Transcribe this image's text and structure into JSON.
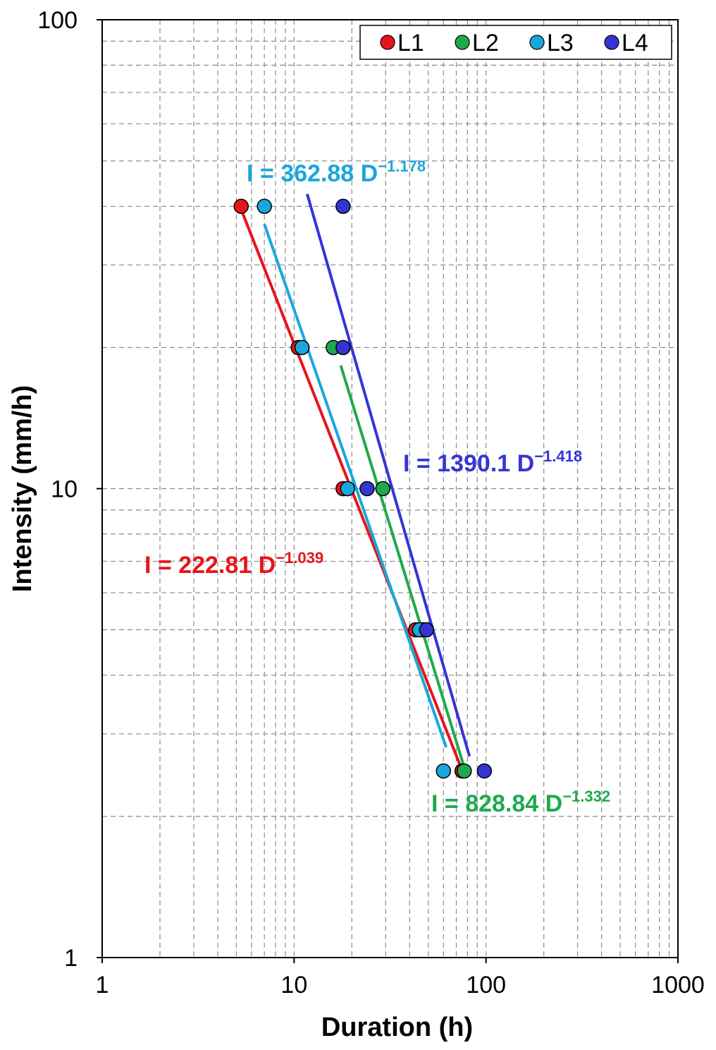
{
  "chart_data": {
    "type": "scatter",
    "x_scale": "log",
    "y_scale": "log",
    "xlim": [
      1,
      1000
    ],
    "ylim": [
      1,
      100
    ],
    "xlabel": "Duration (h)",
    "ylabel": "Intensity (mm/h)",
    "x_ticks": [
      "1",
      "10",
      "100",
      "1000"
    ],
    "y_ticks": [
      "1",
      "10",
      "100"
    ],
    "grid": true,
    "legend": "top-right",
    "series": [
      {
        "name": "L1",
        "color": "#e8141c",
        "points": [
          [
            5.3,
            40
          ],
          [
            10.5,
            20
          ],
          [
            18,
            10
          ],
          [
            43,
            5
          ],
          [
            75,
            2.5
          ]
        ],
        "fit": {
          "a": 222.81,
          "b": -1.039,
          "x_range": [
            5.3,
            76
          ]
        },
        "equation": {
          "lhs": "I = 222.81 D",
          "exp": "−1.039"
        }
      },
      {
        "name": "L2",
        "color": "#1fa94e",
        "points": [
          [
            16,
            20
          ],
          [
            29,
            10
          ],
          [
            47,
            5
          ],
          [
            77,
            2.5
          ]
        ],
        "fit": {
          "a": 828.84,
          "b": -1.332,
          "x_range": [
            17.5,
            80
          ]
        },
        "equation": {
          "lhs": "I = 828.84 D",
          "exp": "−1.332"
        }
      },
      {
        "name": "L3",
        "color": "#1aa7dc",
        "points": [
          [
            7,
            40
          ],
          [
            11,
            20
          ],
          [
            19,
            10
          ],
          [
            45,
            5
          ],
          [
            60,
            2.5
          ]
        ],
        "fit": {
          "a": 362.88,
          "b": -1.178,
          "x_range": [
            7,
            62
          ]
        },
        "equation": {
          "lhs": "I = 362.88 D",
          "exp": "−1.178"
        }
      },
      {
        "name": "L4",
        "color": "#3535d6",
        "points": [
          [
            18,
            40
          ],
          [
            18,
            20
          ],
          [
            24,
            10
          ],
          [
            49,
            5
          ],
          [
            98,
            2.5
          ]
        ],
        "fit": {
          "a": 1390.1,
          "b": -1.418,
          "x_range": [
            11.7,
            82
          ]
        },
        "equation": {
          "lhs": "I = 1390.1 D",
          "exp": "−1.418"
        }
      }
    ]
  }
}
